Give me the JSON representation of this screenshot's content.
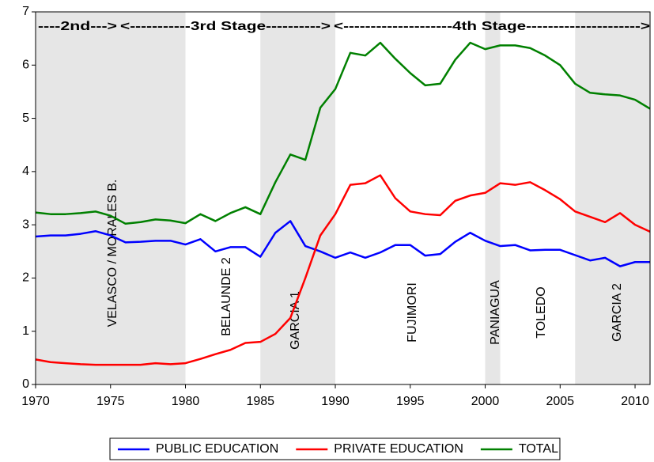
{
  "chart_data": {
    "type": "line",
    "x": [
      1970,
      1971,
      1972,
      1973,
      1974,
      1975,
      1976,
      1977,
      1978,
      1979,
      1980,
      1981,
      1982,
      1983,
      1984,
      1985,
      1986,
      1987,
      1988,
      1989,
      1990,
      1991,
      1992,
      1993,
      1994,
      1995,
      1996,
      1997,
      1998,
      1999,
      2000,
      2001,
      2002,
      2003,
      2004,
      2005,
      2006,
      2007,
      2008,
      2009,
      2010,
      2011
    ],
    "series": [
      {
        "name": "PUBLIC EDUCATION",
        "color": "#0000ff",
        "values": [
          2.78,
          2.8,
          2.8,
          2.83,
          2.88,
          2.8,
          2.67,
          2.68,
          2.7,
          2.7,
          2.63,
          2.73,
          2.5,
          2.58,
          2.58,
          2.4,
          2.85,
          3.07,
          2.6,
          2.5,
          2.38,
          2.48,
          2.38,
          2.48,
          2.62,
          2.62,
          2.42,
          2.45,
          2.68,
          2.85,
          2.7,
          2.6,
          2.62,
          2.52,
          2.53,
          2.53,
          2.43,
          2.33,
          2.38,
          2.22,
          2.3,
          2.3
        ]
      },
      {
        "name": "PRIVATE EDUCATION",
        "color": "#ff0000",
        "values": [
          0.47,
          0.42,
          0.4,
          0.38,
          0.37,
          0.37,
          0.37,
          0.37,
          0.4,
          0.38,
          0.4,
          0.48,
          0.57,
          0.65,
          0.78,
          0.8,
          0.95,
          1.25,
          2.0,
          2.8,
          3.2,
          3.75,
          3.78,
          3.93,
          3.5,
          3.25,
          3.2,
          3.18,
          3.45,
          3.55,
          3.6,
          3.78,
          3.75,
          3.8,
          3.65,
          3.48,
          3.25,
          3.15,
          3.05,
          3.22,
          3.0,
          2.87
        ]
      },
      {
        "name": "TOTAL",
        "color": "#008000",
        "values": [
          3.23,
          3.2,
          3.2,
          3.22,
          3.25,
          3.17,
          3.02,
          3.05,
          3.1,
          3.08,
          3.03,
          3.2,
          3.07,
          3.22,
          3.33,
          3.2,
          3.8,
          4.32,
          4.22,
          5.2,
          5.55,
          6.23,
          6.18,
          6.42,
          6.12,
          5.85,
          5.62,
          5.65,
          6.1,
          6.42,
          6.3,
          6.37,
          6.37,
          6.32,
          6.18,
          6.0,
          5.65,
          5.48,
          5.45,
          5.43,
          5.35,
          5.18
        ]
      }
    ],
    "xlim": [
      1970,
      2011
    ],
    "xticks": [
      1970,
      1975,
      1980,
      1985,
      1990,
      1995,
      2000,
      2005,
      2010
    ],
    "ylim": [
      0,
      7
    ],
    "yticks": [
      0,
      1,
      2,
      3,
      4,
      5,
      6,
      7
    ],
    "shaded_periods": [
      [
        1970,
        1980
      ],
      [
        1985,
        1990
      ],
      [
        2000,
        2001
      ],
      [
        2006,
        2011
      ]
    ],
    "shade_color": "#e6e6e6",
    "stage_labels": [
      "----2nd--->",
      "<-----------3rd Stage---------->",
      "<--------------------4th Stage--------------------->"
    ],
    "period_labels": [
      "VELASCO / MORALES B.",
      "BELAUNDE 2",
      "GARCIA 1",
      "FUJIMORI",
      "PANIAGUA",
      "TOLEDO",
      "GARCIA 2"
    ],
    "legend": "bottom"
  }
}
